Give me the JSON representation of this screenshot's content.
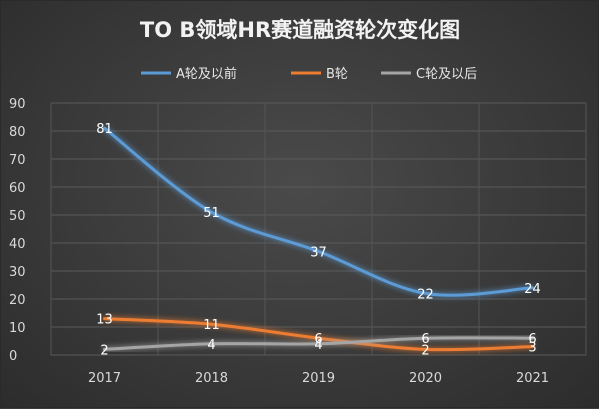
{
  "chart_data": {
    "type": "line",
    "title": "TO B领域HR赛道融资轮次变化图",
    "xlabel": "",
    "ylabel": "",
    "categories": [
      "2017",
      "2018",
      "2019",
      "2020",
      "2021"
    ],
    "ylim": [
      0,
      90
    ],
    "yticks": [
      "0",
      "10",
      "20",
      "30",
      "40",
      "50",
      "60",
      "70",
      "80",
      "90"
    ],
    "grid": true,
    "legend_position": "top",
    "smooth": true,
    "series": [
      {
        "name": "A轮及以前",
        "values": [
          81,
          51,
          37,
          22,
          24
        ],
        "color": "#5b9bd5",
        "label_color": "#ffffff"
      },
      {
        "name": "B轮",
        "values": [
          13,
          11,
          6,
          2,
          3
        ],
        "color": "#ed7d31",
        "label_color": "#ffffff"
      },
      {
        "name": "C轮及以后",
        "values": [
          2,
          4,
          4,
          6,
          6
        ],
        "color": "#a5a5a5",
        "label_color": "#ffffff"
      }
    ]
  }
}
